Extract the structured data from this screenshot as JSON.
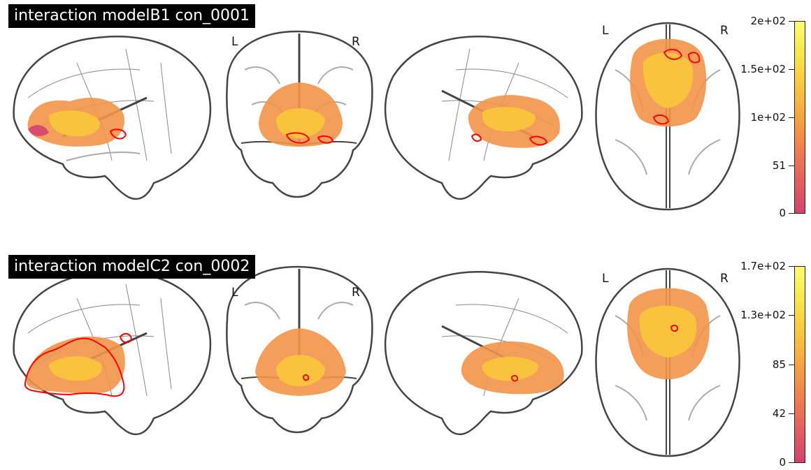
{
  "panels": [
    {
      "title": "interaction modelB1 con_0001",
      "orientation": {
        "left": "L",
        "right": "R",
        "axial_left": "L",
        "axial_right": "R"
      },
      "colorbar": {
        "ticks": [
          "2e+02",
          "1.5e+02",
          "1e+02",
          "51",
          "0"
        ]
      },
      "colors": {
        "low": "#d3436e",
        "mid": "#f8a340",
        "high": "#fcfd6e",
        "contour": "#ff0000"
      }
    },
    {
      "title": "interaction modelC2 con_0002",
      "orientation": {
        "left": "L",
        "right": "R",
        "axial_left": "L",
        "axial_right": "R"
      },
      "colorbar": {
        "ticks": [
          "1.7e+02",
          "1.3e+02",
          "85",
          "42",
          "0"
        ]
      },
      "colors": {
        "low": "#d3436e",
        "mid": "#f8a340",
        "high": "#fcfd6e",
        "contour": "#ff0000"
      }
    }
  ]
}
